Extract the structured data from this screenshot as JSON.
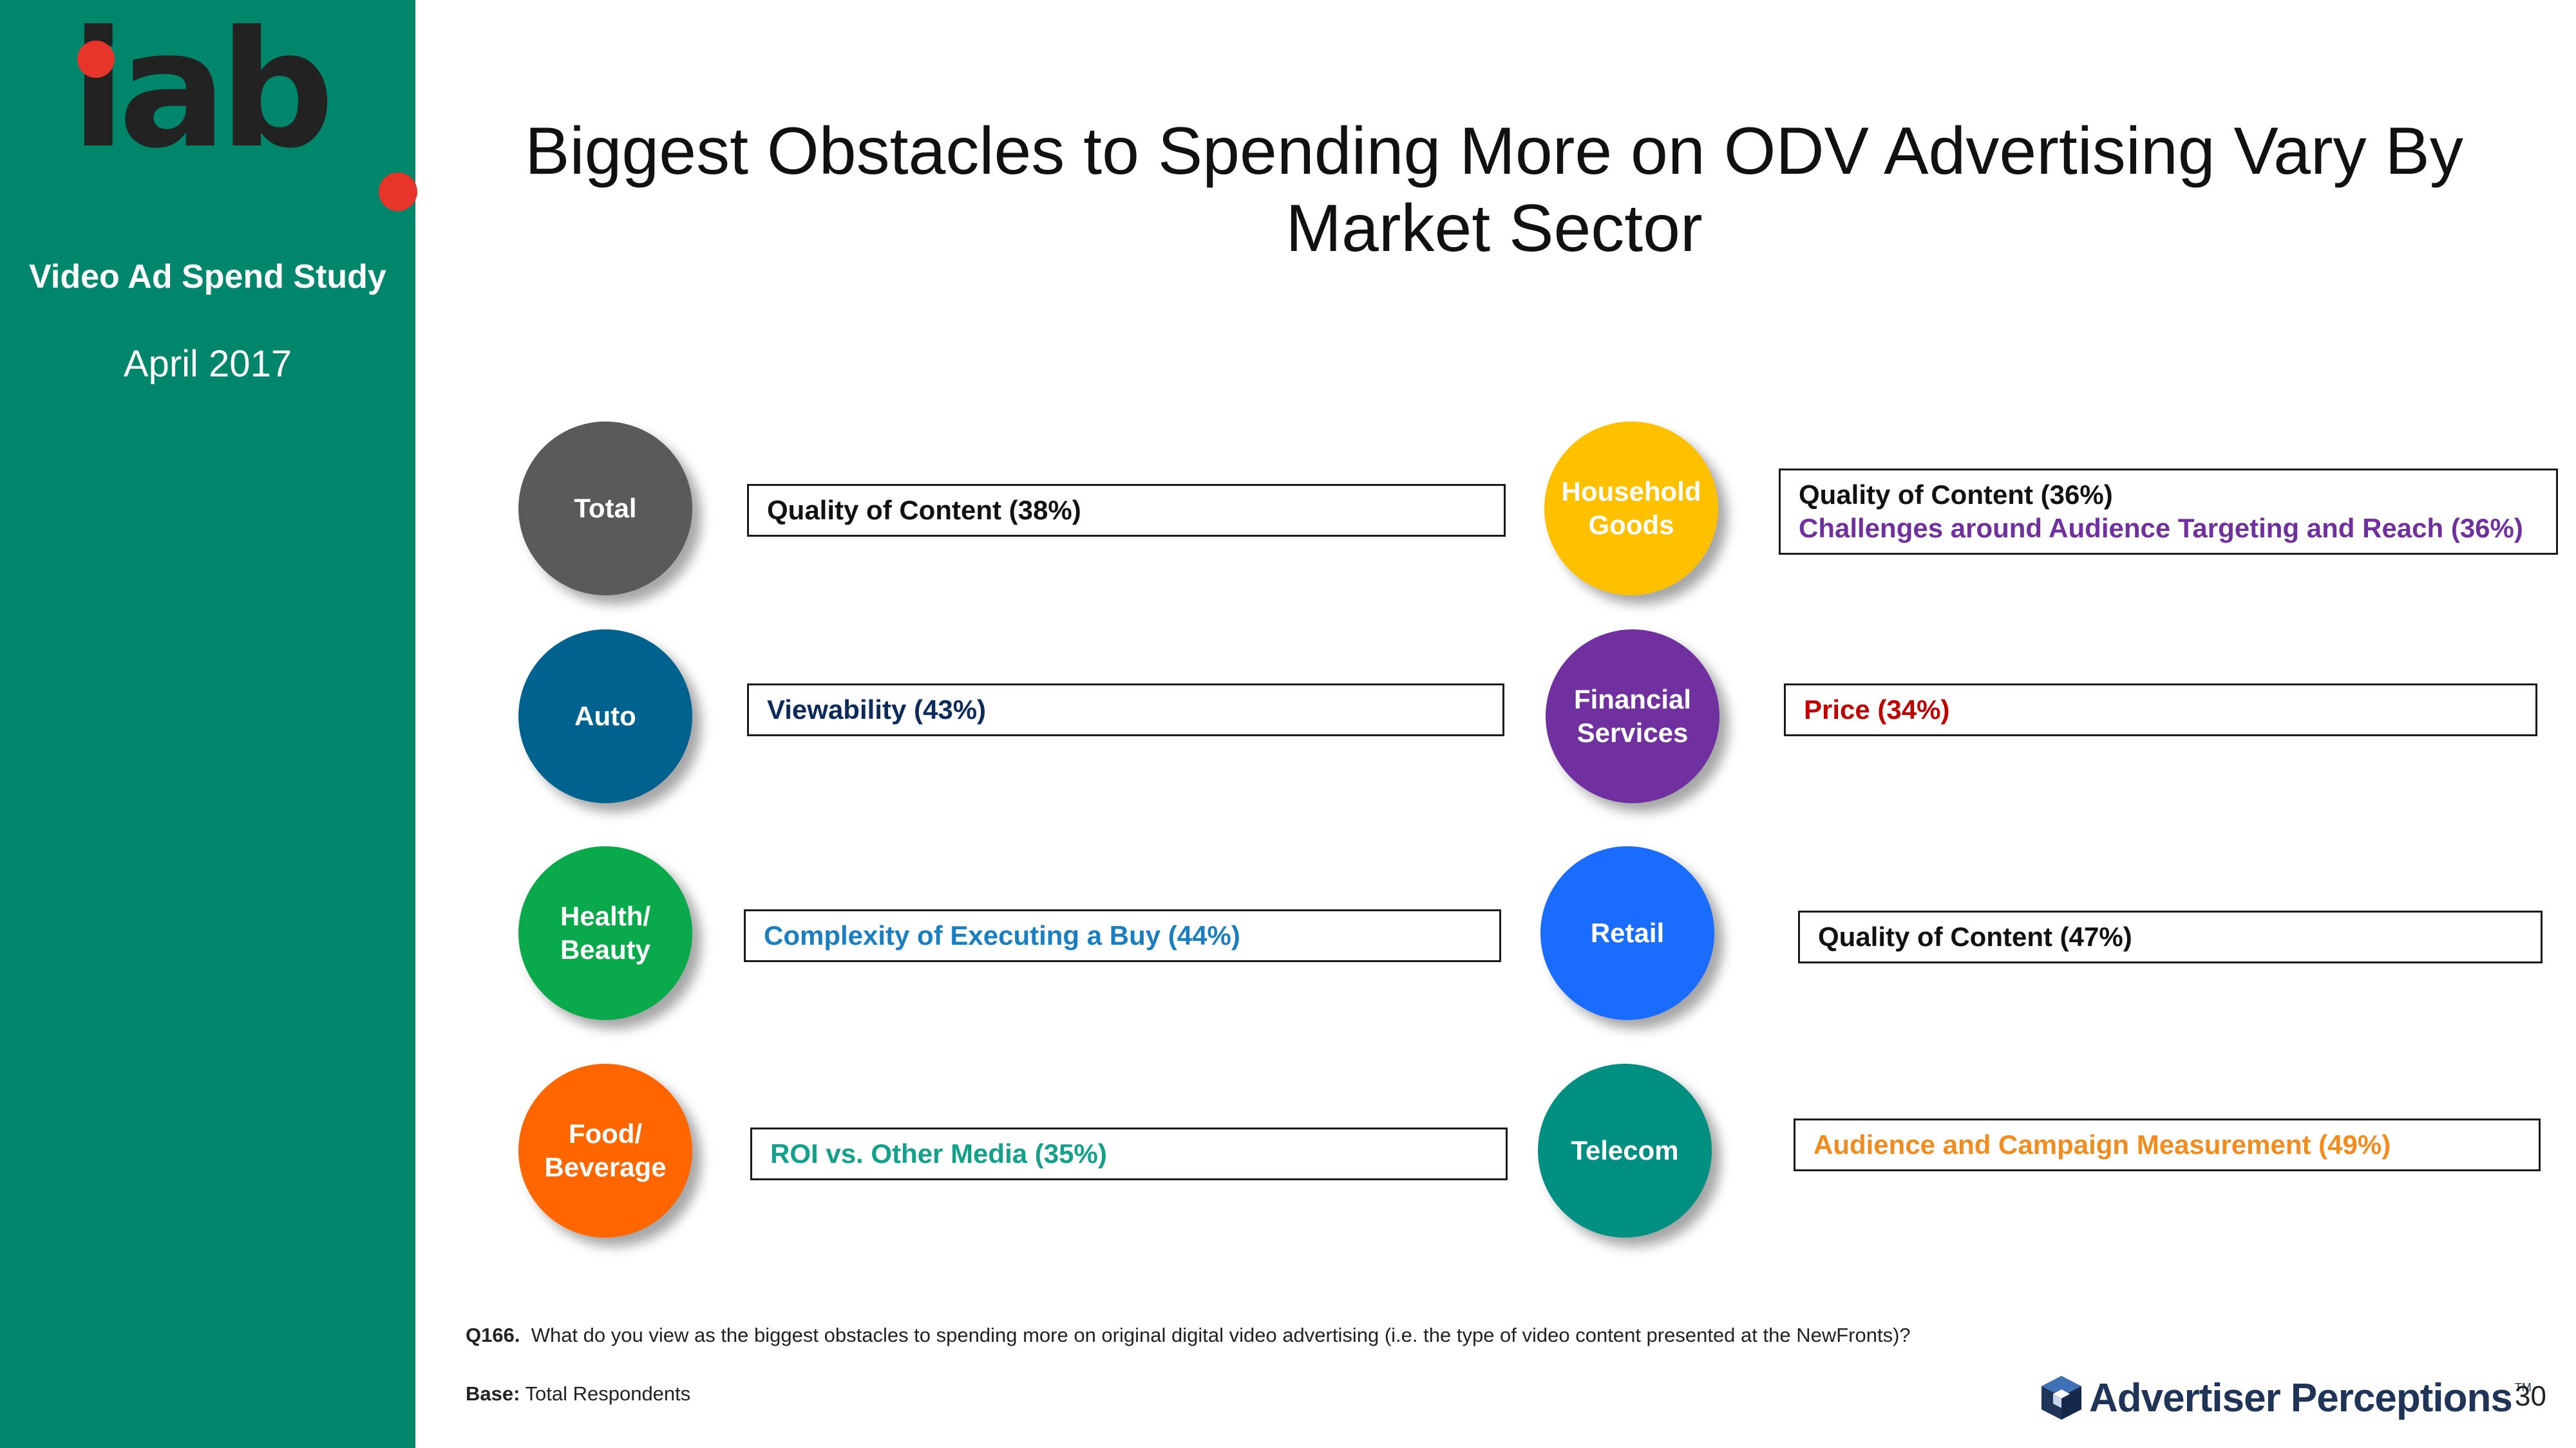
{
  "sidebar": {
    "logo_text": "iab",
    "study_name": "Video Ad Spend Study",
    "study_date": "April 2017"
  },
  "title": "Biggest Obstacles to Spending More on ODV Advertising Vary By Market Sector",
  "sectors": [
    {
      "name": "Total",
      "color": "#5a5a5a",
      "obstacles": [
        {
          "text": "Quality of Content (38%)",
          "color": "#111111"
        }
      ]
    },
    {
      "name": "Auto",
      "color": "#00628f",
      "obstacles": [
        {
          "text": "Viewability (43%)",
          "color": "#0d2a5c"
        }
      ]
    },
    {
      "name": "Health/ Beauty",
      "color": "#0aa94b",
      "obstacles": [
        {
          "text": "Complexity of Executing a Buy (44%)",
          "color": "#1a7fc0"
        }
      ]
    },
    {
      "name": "Food/ Beverage",
      "color": "#ff6600",
      "obstacles": [
        {
          "text": "ROI vs. Other Media (35%)",
          "color": "#13a18a"
        }
      ]
    },
    {
      "name": "Household Goods",
      "color": "#ffc000",
      "obstacles": [
        {
          "text": "Quality of Content (36%)",
          "color": "#111111"
        },
        {
          "text": "Challenges around Audience Targeting and Reach (36%)",
          "color": "#7030a0"
        }
      ]
    },
    {
      "name": "Financial Services",
      "color": "#7030a0",
      "obstacles": [
        {
          "text": "Price (34%)",
          "color": "#c00000"
        }
      ]
    },
    {
      "name": "Retail",
      "color": "#1a6cff",
      "obstacles": [
        {
          "text": "Quality of Content (47%)",
          "color": "#111111"
        }
      ]
    },
    {
      "name": "Telecom",
      "color": "#008f80",
      "obstacles": [
        {
          "text": "Audience and Campaign Measurement (49%)",
          "color": "#f28c1e"
        }
      ]
    }
  ],
  "footnote": {
    "question_id": "Q166.",
    "question_text": "What do you view as the biggest obstacles to spending more on original digital video advertising (i.e. the type of video content presented at the NewFronts)?",
    "base_label": "Base:",
    "base_text": "Total Respondents"
  },
  "brand": {
    "name": "Advertiser Perceptions",
    "tm": "TM"
  },
  "page_number": "30"
}
